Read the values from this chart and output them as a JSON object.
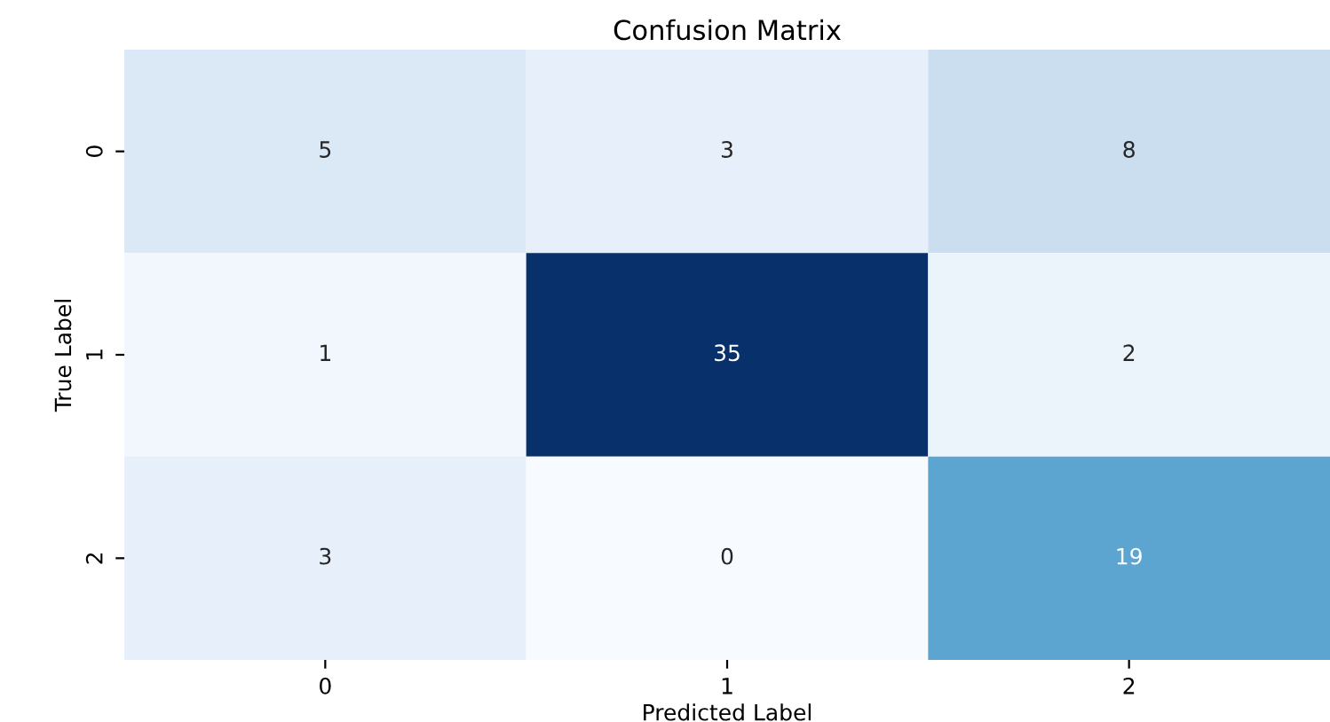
{
  "chart_data": {
    "type": "heatmap",
    "title": "Confusion Matrix",
    "xlabel": "Predicted Label",
    "ylabel": "True Label",
    "categories": [
      "0",
      "1",
      "2"
    ],
    "y_categories": [
      "0",
      "1",
      "2"
    ],
    "cells": [
      [
        5,
        3,
        8
      ],
      [
        1,
        35,
        2
      ],
      [
        3,
        0,
        19
      ]
    ],
    "data_labels": true
  }
}
